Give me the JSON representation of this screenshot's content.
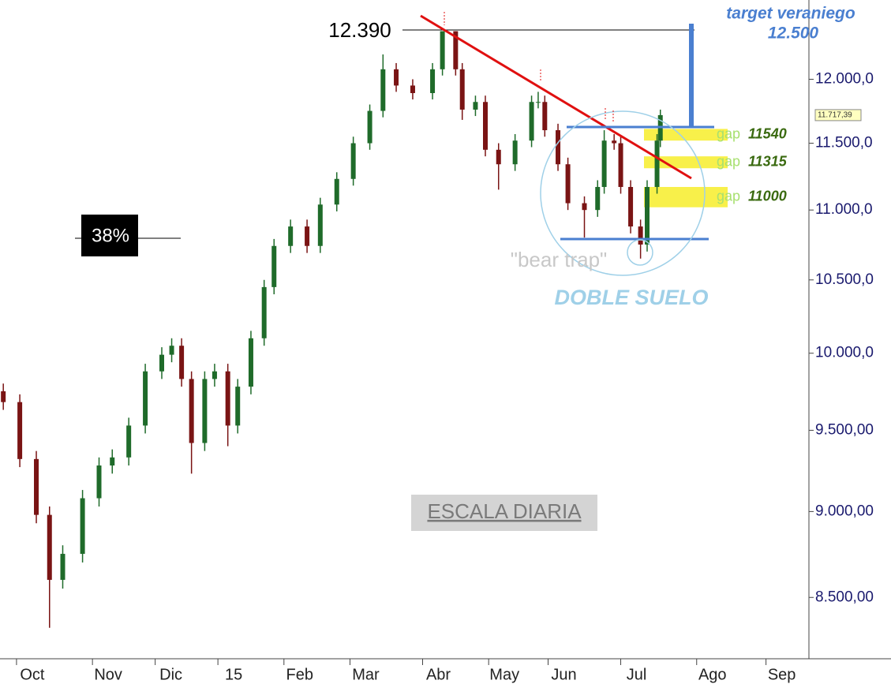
{
  "chart_data": {
    "type": "candlestick",
    "x": [
      0,
      5,
      10,
      14,
      18,
      24,
      29,
      33,
      38,
      43,
      48,
      51,
      54,
      57,
      61,
      64,
      68,
      71,
      75,
      79,
      82,
      87,
      92,
      96,
      101,
      106,
      111,
      115,
      119,
      124,
      130,
      133,
      137,
      139,
      143,
      146,
      150,
      155,
      160,
      162,
      164,
      168,
      171,
      176,
      180,
      182,
      185,
      187,
      190,
      193,
      195,
      198,
      199
    ],
    "open": [
      9750,
      9680,
      9320,
      8980,
      8600,
      8750,
      9080,
      9280,
      9330,
      9530,
      9880,
      9990,
      10050,
      9830,
      9420,
      9830,
      9880,
      9530,
      9780,
      10100,
      10450,
      10740,
      10880,
      10740,
      11040,
      11230,
      11500,
      11750,
      12080,
      11950,
      11890,
      12080,
      12390,
      12080,
      11760,
      11820,
      11450,
      11340,
      11520,
      11820,
      11820,
      11600,
      11340,
      11050,
      11000,
      11170,
      11520,
      11500,
      11170,
      10880,
      10750,
      11170,
      11520
    ],
    "high": [
      9800,
      9730,
      9370,
      9030,
      8800,
      9130,
      9330,
      9380,
      9580,
      9930,
      10040,
      10100,
      10100,
      9880,
      9880,
      9930,
      9930,
      9830,
      10150,
      10500,
      10790,
      10930,
      10930,
      11090,
      11280,
      11550,
      11800,
      12200,
      12130,
      12000,
      12130,
      12390,
      12390,
      12130,
      11870,
      11870,
      11500,
      11570,
      11870,
      11900,
      11870,
      11650,
      11390,
      11100,
      11220,
      11600,
      11570,
      11550,
      11220,
      10930,
      11220,
      11570,
      11760
    ],
    "low": [
      9630,
      9270,
      8930,
      8330,
      8550,
      8700,
      9030,
      9230,
      9280,
      9480,
      9830,
      9940,
      9780,
      9230,
      9370,
      9780,
      9400,
      9480,
      9730,
      10050,
      10400,
      10690,
      10690,
      10690,
      10990,
      11180,
      11450,
      11700,
      11900,
      11840,
      11840,
      12030,
      12030,
      11680,
      11710,
      11400,
      11150,
      11290,
      11470,
      11770,
      11550,
      11290,
      11000,
      10800,
      10950,
      11120,
      11450,
      11120,
      10830,
      10650,
      10700,
      11120,
      11470
    ],
    "close": [
      9680,
      9320,
      8980,
      8600,
      8750,
      9080,
      9280,
      9330,
      9530,
      9880,
      9990,
      10050,
      9830,
      9420,
      9830,
      9880,
      9530,
      9780,
      10100,
      10450,
      10740,
      10880,
      10740,
      11040,
      11230,
      11500,
      11750,
      12080,
      11950,
      11890,
      12080,
      12390,
      12080,
      11760,
      11820,
      11450,
      11340,
      11520,
      11820,
      11820,
      11600,
      11340,
      11050,
      11000,
      11170,
      11520,
      11500,
      11170,
      10880,
      10750,
      11170,
      11520,
      11717
    ],
    "up_color": "#1f6b2a",
    "down_color": "#7a1414",
    "xlim": [
      -1,
      244
    ],
    "xticks": [
      {
        "value": 4,
        "label": "Oct"
      },
      {
        "value": 27,
        "label": "Nov"
      },
      {
        "value": 46,
        "label": "Dic"
      },
      {
        "value": 65,
        "label": "15"
      },
      {
        "value": 85,
        "label": "Feb"
      },
      {
        "value": 105,
        "label": "Mar"
      },
      {
        "value": 127,
        "label": "Abr"
      },
      {
        "value": 147,
        "label": "May"
      },
      {
        "value": 165,
        "label": "Jun"
      },
      {
        "value": 187,
        "label": "Jul"
      },
      {
        "value": 210,
        "label": "Ago"
      },
      {
        "value": 231,
        "label": "Sep"
      }
    ],
    "ylim": [
      8160,
      12650
    ],
    "log_scale": true,
    "yticks": [
      {
        "value": 8500,
        "label": "8.500,00"
      },
      {
        "value": 9000,
        "label": "9.000,00"
      },
      {
        "value": 9500,
        "label": "9.500,00"
      },
      {
        "value": 10000,
        "label": "10.000,0"
      },
      {
        "value": 10500,
        "label": "10.500,0"
      },
      {
        "value": 11000,
        "label": "11.000,0"
      },
      {
        "value": 11500,
        "label": "11.500,0"
      },
      {
        "value": 12000,
        "label": "12.000,0"
      }
    ],
    "last_price_label": "11.717,39",
    "gaps": [
      {
        "label": "gap",
        "level": "11540",
        "low": 11520,
        "high": 11610
      },
      {
        "label": "gap",
        "level": "11315",
        "low": 11310,
        "high": 11400
      },
      {
        "label": "gap",
        "level": "11000",
        "low": 11020,
        "high": 11170
      }
    ],
    "annotations": {
      "high": "12.390",
      "retracement": "38%",
      "target_title": "target veraniego",
      "target_value": "12.500",
      "bear_trap": "\"bear trap\"",
      "pattern": "DOBLE SUELO",
      "scale": "ESCALA DIARIA"
    }
  }
}
